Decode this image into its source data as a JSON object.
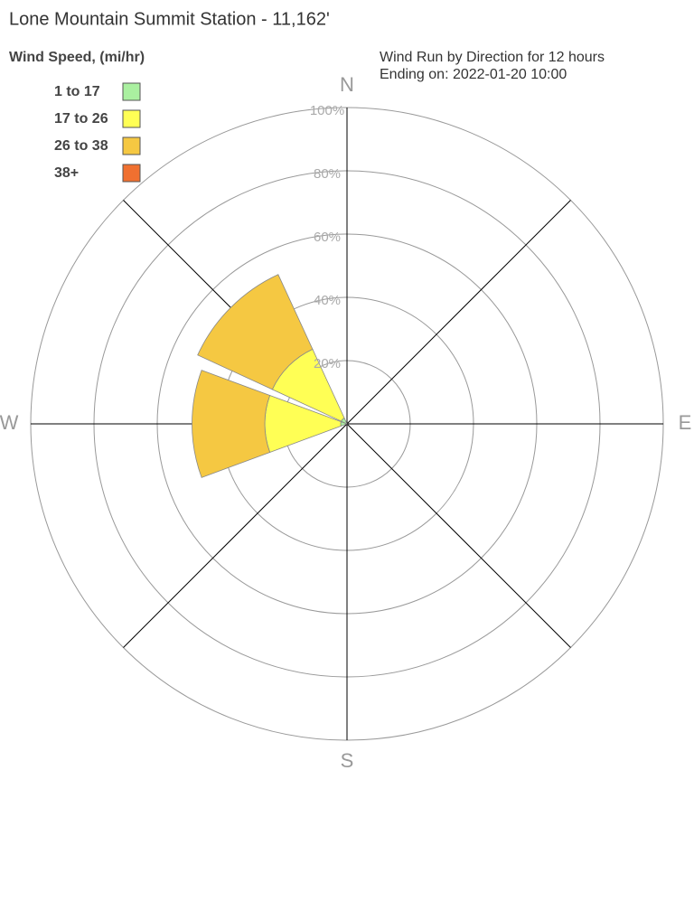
{
  "chart_data": {
    "type": "windrose",
    "title": "Lone Mountain Summit Station - 11,162'",
    "subtitle": "Wind Run by Direction for 12 hours",
    "subtitle2": "Ending on: 2022-01-20 10:00",
    "legend_title": "Wind Speed, (mi/hr)",
    "categories": [
      "N",
      null,
      "E",
      null,
      "S",
      null,
      "W",
      null
    ],
    "series": [
      {
        "name": "1 to 17",
        "color": "#aaf0a0",
        "values": [
          0,
          0,
          0,
          0,
          0,
          0,
          2,
          2
        ]
      },
      {
        "name": "17 to 26",
        "color": "#ffff55",
        "values": [
          0,
          0,
          0,
          0,
          0,
          0,
          24,
          24
        ]
      },
      {
        "name": "26 to 38",
        "color": "#f5c842",
        "values": [
          0,
          0,
          0,
          0,
          0,
          0,
          23,
          26
        ]
      },
      {
        "name": "38+",
        "color": "#f07030",
        "values": [
          0,
          0,
          0,
          0,
          0,
          0,
          0,
          0
        ]
      }
    ],
    "ylim": [
      0,
      100
    ],
    "yticks": [
      {
        "value": 20,
        "label": "20%"
      },
      {
        "value": 40,
        "label": "40%"
      },
      {
        "value": 60,
        "label": "60%"
      },
      {
        "value": 80,
        "label": "80%"
      },
      {
        "value": 100,
        "label": "100%"
      }
    ]
  }
}
